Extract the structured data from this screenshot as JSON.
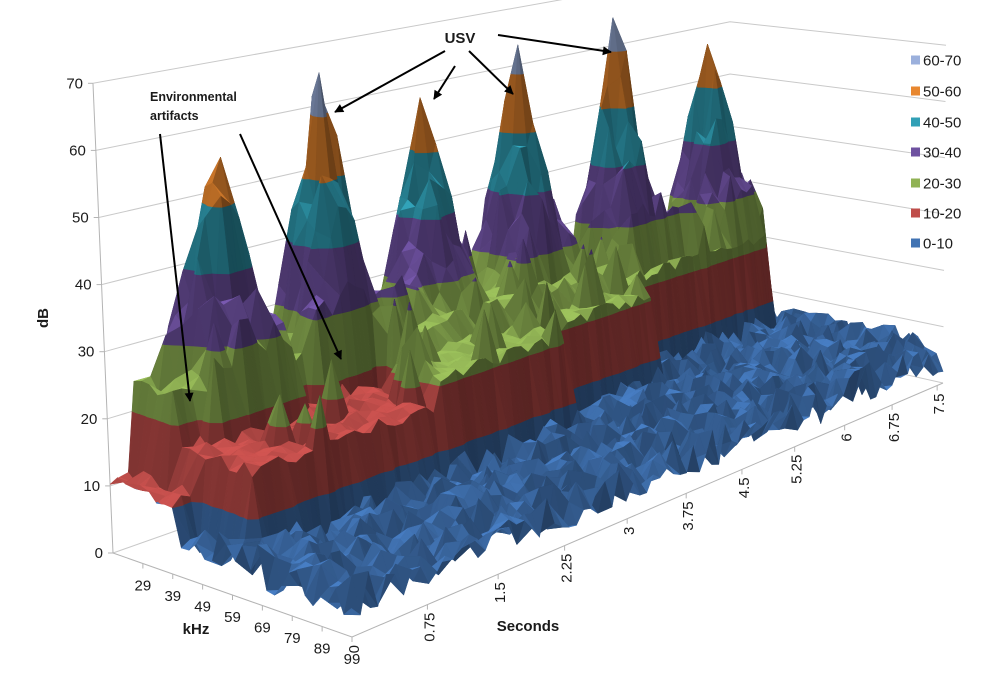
{
  "chart_data": {
    "type": "surface",
    "axes": {
      "x": {
        "label": "kHz",
        "range": [
          19,
          99
        ],
        "ticks": [
          29,
          39,
          49,
          59,
          69,
          79,
          89,
          99
        ]
      },
      "y": {
        "label": "Seconds",
        "range": [
          0,
          7.6
        ],
        "ticks": [
          0,
          0.75,
          1.5,
          2.25,
          3,
          3.75,
          4.5,
          5.25,
          6,
          6.75,
          7.5
        ]
      },
      "z": {
        "label": "dB",
        "range": [
          0,
          70
        ],
        "ticks": [
          0,
          10,
          20,
          30,
          40,
          50,
          60,
          70
        ]
      }
    },
    "grid": true,
    "legend": {
      "position": "right",
      "items": [
        {
          "label": "60-70",
          "min": 60,
          "max": 70,
          "color": "#9bb0dc"
        },
        {
          "label": "50-60",
          "min": 50,
          "max": 60,
          "color": "#e8872f"
        },
        {
          "label": "40-50",
          "min": 40,
          "max": 50,
          "color": "#31a0b6"
        },
        {
          "label": "30-40",
          "min": 30,
          "max": 40,
          "color": "#6e51a0"
        },
        {
          "label": "20-30",
          "min": 20,
          "max": 30,
          "color": "#90b254"
        },
        {
          "label": "10-20",
          "min": 10,
          "max": 20,
          "color": "#bf4d4a"
        },
        {
          "label": "0-10",
          "min": 0,
          "max": 10,
          "color": "#4173b3"
        }
      ]
    },
    "annotations": [
      {
        "lines": [
          "USV"
        ]
      },
      {
        "lines": [
          "Environmental",
          "artifacts"
        ]
      }
    ],
    "series": {
      "noise_floor_db": [
        2,
        9
      ],
      "usv_calls": [
        {
          "seconds": 0.9,
          "khz": 27,
          "peak_db": 57
        },
        {
          "seconds": 2.0,
          "khz": 26,
          "peak_db": 67
        },
        {
          "seconds": 3.15,
          "khz": 25,
          "peak_db": 59
        },
        {
          "seconds": 4.3,
          "khz": 26,
          "peak_db": 65
        },
        {
          "seconds": 5.65,
          "khz": 25,
          "peak_db": 66
        },
        {
          "seconds": 6.95,
          "khz": 27,
          "peak_db": 58
        }
      ],
      "environmental_artifacts": [
        {
          "khz": [
            19,
            40
          ],
          "seconds": [
            0,
            0.2
          ],
          "level_db": 11
        },
        {
          "khz": [
            19,
            34
          ],
          "seconds": [
            0.2,
            2.3
          ],
          "level_db": 24
        },
        {
          "khz": [
            34,
            60
          ],
          "seconds": [
            0.25,
            2.2
          ],
          "level_db": 17
        },
        {
          "khz": [
            19,
            40
          ],
          "seconds": [
            2.3,
            5.0
          ],
          "level_db": 25
        },
        {
          "khz": [
            40,
            60
          ],
          "seconds": [
            2.2,
            3.7
          ],
          "level_db": 21
        },
        {
          "khz": [
            40,
            52
          ],
          "seconds": [
            3.7,
            5.2
          ],
          "level_db": 21
        },
        {
          "khz": [
            19,
            42
          ],
          "seconds": [
            5.0,
            7.3
          ],
          "level_db": 22
        }
      ]
    }
  }
}
